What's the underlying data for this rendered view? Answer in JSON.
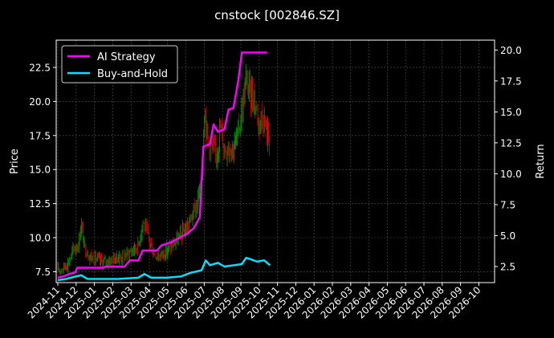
{
  "chart_data": {
    "type": "line",
    "title": "cnstock [002846.SZ]",
    "ylabel_left": "Price",
    "ylabel_right": "Return",
    "ylim_left": [
      6.7,
      24.5
    ],
    "ylim_right": [
      1.2,
      20.8
    ],
    "yticks_left": [
      "7.5",
      "10.0",
      "12.5",
      "15.0",
      "17.5",
      "20.0",
      "22.5"
    ],
    "yticks_right": [
      "2.5",
      "5.0",
      "7.5",
      "10.0",
      "12.5",
      "15.0",
      "17.5",
      "20.0"
    ],
    "x_tick_labels": [
      "2024-11",
      "2024-12",
      "2025-01",
      "2025-02",
      "2025-03",
      "2025-04",
      "2025-05",
      "2025-06",
      "2025-07",
      "2025-08",
      "2025-09",
      "2025-10",
      "2025-11",
      "2025-12",
      "2026-01",
      "2026-02",
      "2026-03",
      "2026-04",
      "2026-05",
      "2026-06",
      "2026-07",
      "2026-08",
      "2026-09",
      "2026-10"
    ],
    "grid": true,
    "legend_position": "top-left",
    "legend": [
      {
        "name": "AI Strategy",
        "color": "#ff00ff"
      },
      {
        "name": "Buy-and-Hold",
        "color": "#00e5ff"
      }
    ],
    "candle_up_color": "#00a000",
    "candle_down_color": "#e00000",
    "price_close": [
      [
        "2024-11-01",
        7.6
      ],
      [
        "2024-11-10",
        7.8
      ],
      [
        "2024-11-20",
        8.3
      ],
      [
        "2024-11-28",
        9.2
      ],
      [
        "2024-12-05",
        9.5
      ],
      [
        "2024-12-10",
        11.0
      ],
      [
        "2024-12-15",
        9.3
      ],
      [
        "2024-12-25",
        8.6
      ],
      [
        "2025-01-05",
        8.4
      ],
      [
        "2025-01-15",
        8.2
      ],
      [
        "2025-01-25",
        8.3
      ],
      [
        "2025-02-05",
        8.5
      ],
      [
        "2025-02-15",
        8.6
      ],
      [
        "2025-02-25",
        8.8
      ],
      [
        "2025-03-05",
        9.1
      ],
      [
        "2025-03-15",
        9.4
      ],
      [
        "2025-03-22",
        11.2
      ],
      [
        "2025-03-30",
        10.2
      ],
      [
        "2025-04-08",
        9.0
      ],
      [
        "2025-04-18",
        8.6
      ],
      [
        "2025-04-28",
        9.0
      ],
      [
        "2025-05-08",
        9.3
      ],
      [
        "2025-05-18",
        9.8
      ],
      [
        "2025-05-28",
        10.4
      ],
      [
        "2025-06-05",
        10.8
      ],
      [
        "2025-06-12",
        11.6
      ],
      [
        "2025-06-20",
        12.4
      ],
      [
        "2025-06-28",
        14.2
      ],
      [
        "2025-07-03",
        19.8
      ],
      [
        "2025-07-08",
        17.2
      ],
      [
        "2025-07-15",
        16.6
      ],
      [
        "2025-07-22",
        16.0
      ],
      [
        "2025-07-30",
        18.2
      ],
      [
        "2025-08-05",
        16.5
      ],
      [
        "2025-08-12",
        16.8
      ],
      [
        "2025-08-20",
        16.6
      ],
      [
        "2025-08-27",
        17.4
      ],
      [
        "2025-09-03",
        19.4
      ],
      [
        "2025-09-10",
        21.5
      ],
      [
        "2025-09-17",
        20.6
      ],
      [
        "2025-09-24",
        20.2
      ],
      [
        "2025-10-01",
        18.5
      ],
      [
        "2025-10-08",
        19.0
      ],
      [
        "2025-10-14",
        17.8
      ],
      [
        "2025-10-20",
        17.0
      ]
    ],
    "series": [
      {
        "name": "AI Strategy",
        "axis": "right",
        "points": [
          [
            "2024-11-01",
            1.6
          ],
          [
            "2024-11-10",
            1.7
          ],
          [
            "2024-11-20",
            1.9
          ],
          [
            "2024-11-28",
            2.0
          ],
          [
            "2024-12-01",
            2.1
          ],
          [
            "2024-12-03",
            2.4
          ],
          [
            "2025-01-15",
            2.4
          ],
          [
            "2025-01-20",
            2.5
          ],
          [
            "2025-02-20",
            2.5
          ],
          [
            "2025-03-01",
            3.0
          ],
          [
            "2025-03-15",
            3.0
          ],
          [
            "2025-03-22",
            3.8
          ],
          [
            "2025-04-15",
            3.8
          ],
          [
            "2025-04-22",
            4.2
          ],
          [
            "2025-05-10",
            4.5
          ],
          [
            "2025-05-25",
            4.9
          ],
          [
            "2025-06-05",
            5.2
          ],
          [
            "2025-06-15",
            5.6
          ],
          [
            "2025-06-25",
            6.5
          ],
          [
            "2025-07-01",
            12.2
          ],
          [
            "2025-07-12",
            12.4
          ],
          [
            "2025-07-18",
            14.0
          ],
          [
            "2025-07-25",
            13.4
          ],
          [
            "2025-08-05",
            13.6
          ],
          [
            "2025-08-12",
            15.2
          ],
          [
            "2025-08-20",
            15.3
          ],
          [
            "2025-08-28",
            17.5
          ],
          [
            "2025-09-03",
            19.8
          ],
          [
            "2025-10-15",
            19.8
          ]
        ]
      },
      {
        "name": "Buy-and-Hold",
        "axis": "right",
        "points": [
          [
            "2024-11-01",
            1.4
          ],
          [
            "2024-11-15",
            1.5
          ],
          [
            "2024-12-01",
            1.7
          ],
          [
            "2024-12-10",
            1.8
          ],
          [
            "2024-12-20",
            1.5
          ],
          [
            "2025-01-15",
            1.5
          ],
          [
            "2025-02-10",
            1.5
          ],
          [
            "2025-03-15",
            1.6
          ],
          [
            "2025-03-25",
            1.9
          ],
          [
            "2025-04-05",
            1.6
          ],
          [
            "2025-05-01",
            1.6
          ],
          [
            "2025-05-25",
            1.7
          ],
          [
            "2025-06-10",
            2.0
          ],
          [
            "2025-06-20",
            2.1
          ],
          [
            "2025-06-28",
            2.2
          ],
          [
            "2025-07-05",
            3.0
          ],
          [
            "2025-07-12",
            2.6
          ],
          [
            "2025-07-25",
            2.8
          ],
          [
            "2025-08-05",
            2.5
          ],
          [
            "2025-08-20",
            2.6
          ],
          [
            "2025-09-03",
            2.7
          ],
          [
            "2025-09-10",
            3.2
          ],
          [
            "2025-09-17",
            3.1
          ],
          [
            "2025-09-28",
            2.9
          ],
          [
            "2025-10-10",
            3.0
          ],
          [
            "2025-10-20",
            2.6
          ]
        ]
      }
    ]
  }
}
